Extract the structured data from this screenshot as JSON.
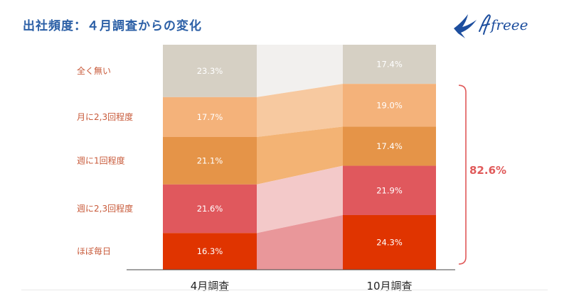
{
  "page": {
    "title": "出社頻度：４月調査からの変化",
    "logo_text": "freee"
  },
  "chart_data": {
    "type": "stacked-bar",
    "x_categories": [
      "4月調査",
      "10月調査"
    ],
    "segments": [
      {
        "name": "全く無い",
        "color": "#d6d0c4",
        "connector": "#f2f0ee",
        "values": [
          23.3,
          17.4
        ]
      },
      {
        "name": "月に2,3回程度",
        "color": "#f4b27a",
        "connector": "#f7c9a0",
        "values": [
          17.7,
          19.0
        ]
      },
      {
        "name": "週に1回程度",
        "color": "#e59448",
        "connector": "#f3b374",
        "values": [
          21.1,
          17.4
        ]
      },
      {
        "name": "週に2,3回程度",
        "color": "#e0585d",
        "connector": "#f3c9c9",
        "values": [
          21.6,
          21.9
        ]
      },
      {
        "name": "ほぼ毎日",
        "color": "#e03400",
        "connector": "#e9979a",
        "values": [
          16.3,
          24.3
        ]
      }
    ],
    "value_labels": [
      [
        "23.3%",
        "17.7%",
        "21.1%",
        "21.6%",
        "16.3%"
      ],
      [
        "17.4%",
        "19.0%",
        "17.4%",
        "21.9%",
        "24.3%"
      ]
    ],
    "bracket": {
      "label": "82.6%",
      "color": "#e05a5a"
    },
    "ylim": [
      0,
      100
    ],
    "grid": false,
    "legend": "left"
  }
}
